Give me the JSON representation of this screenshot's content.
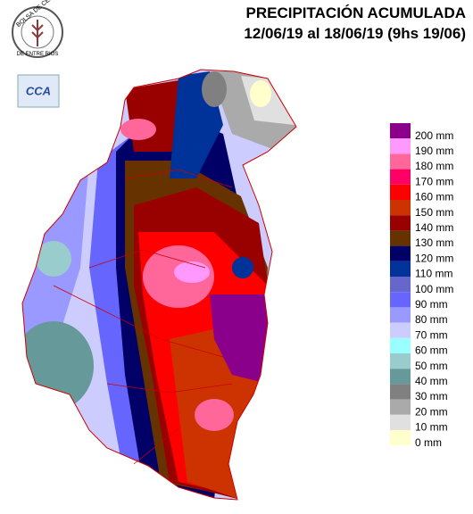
{
  "header": {
    "title": "PRECIPITACIÓN ACUMULADA",
    "subtitle": "12/06/19 al 18/06/19 (9hs 19/06)"
  },
  "logo": {
    "top": "BOLSA DE CEREALES",
    "bottom": "DE ENTRE RIOS",
    "badge": "CCA"
  },
  "legend": [
    {
      "label": "200 mm",
      "color": "#8b008b"
    },
    {
      "label": "190 mm",
      "color": "#ff99ff"
    },
    {
      "label": "180 mm",
      "color": "#ff6699"
    },
    {
      "label": "170 mm",
      "color": "#ff0066"
    },
    {
      "label": "160 mm",
      "color": "#ff0000"
    },
    {
      "label": "150 mm",
      "color": "#cc3300"
    },
    {
      "label": "140 mm",
      "color": "#990000"
    },
    {
      "label": "130 mm",
      "color": "#663300"
    },
    {
      "label": "120 mm",
      "color": "#000066"
    },
    {
      "label": "110 mm",
      "color": "#003399"
    },
    {
      "label": "100 mm",
      "color": "#6666cc"
    },
    {
      "label": "90 mm",
      "color": "#6666ff"
    },
    {
      "label": "80 mm",
      "color": "#9999ff"
    },
    {
      "label": "70 mm",
      "color": "#ccccff"
    },
    {
      "label": "60 mm",
      "color": "#99ffff"
    },
    {
      "label": "50 mm",
      "color": "#99cccc"
    },
    {
      "label": "40 mm",
      "color": "#669999"
    },
    {
      "label": "30 mm",
      "color": "#808080"
    },
    {
      "label": "20 mm",
      "color": "#aaaaaa"
    },
    {
      "label": "10 mm",
      "color": "#e0e0e0"
    },
    {
      "label": "0 mm",
      "color": "#ffffcc"
    }
  ]
}
